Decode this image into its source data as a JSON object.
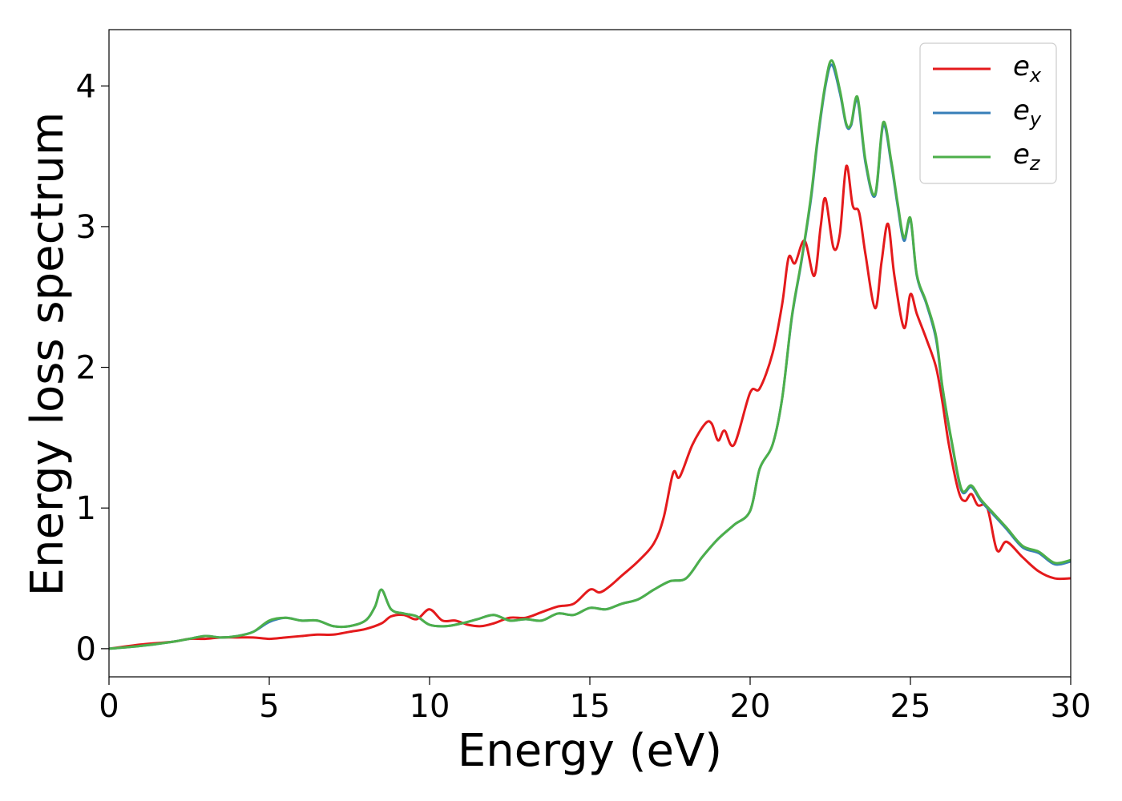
{
  "chart_data": {
    "type": "line",
    "xlabel": "Energy (eV)",
    "ylabel": "Energy loss spectrum",
    "xlim": [
      0,
      30
    ],
    "ylim": [
      -0.2,
      4.4
    ],
    "xticks": [
      0,
      5,
      10,
      15,
      20,
      25,
      30
    ],
    "xtick_labels": [
      "0",
      "5",
      "10",
      "15",
      "20",
      "25",
      "30"
    ],
    "yticks": [
      0,
      1,
      2,
      3,
      4
    ],
    "ytick_labels": [
      "0",
      "1",
      "2",
      "3",
      "4"
    ],
    "grid": false,
    "legend": "top-right",
    "series": [
      {
        "name": "e",
        "subscript": "x",
        "color": "#e41a1c",
        "x": [
          0,
          1,
          2,
          2.5,
          3,
          3.5,
          4,
          4.5,
          5,
          5.5,
          6,
          6.5,
          7,
          7.5,
          8,
          8.5,
          8.8,
          9.2,
          9.6,
          10,
          10.4,
          10.8,
          11.2,
          11.6,
          12,
          12.5,
          13,
          13.5,
          14,
          14.5,
          15,
          15.3,
          15.6,
          16,
          16.5,
          17,
          17.3,
          17.6,
          17.8,
          18.2,
          18.6,
          18.8,
          19.0,
          19.2,
          19.5,
          20,
          20.3,
          20.7,
          21,
          21.2,
          21.4,
          21.7,
          22.0,
          22.2,
          22.35,
          22.6,
          22.8,
          23.0,
          23.2,
          23.4,
          23.6,
          23.9,
          24.1,
          24.3,
          24.5,
          24.8,
          25.0,
          25.2,
          25.5,
          25.8,
          26.0,
          26.2,
          26.5,
          26.7,
          26.9,
          27.1,
          27.4,
          27.7,
          28,
          28.5,
          29,
          29.5,
          30
        ],
        "values": [
          0,
          0.03,
          0.05,
          0.07,
          0.07,
          0.08,
          0.08,
          0.08,
          0.07,
          0.08,
          0.09,
          0.1,
          0.1,
          0.12,
          0.14,
          0.18,
          0.23,
          0.24,
          0.21,
          0.28,
          0.2,
          0.2,
          0.17,
          0.16,
          0.18,
          0.22,
          0.22,
          0.26,
          0.3,
          0.32,
          0.42,
          0.4,
          0.44,
          0.52,
          0.62,
          0.75,
          0.93,
          1.25,
          1.22,
          1.45,
          1.6,
          1.6,
          1.48,
          1.55,
          1.45,
          1.82,
          1.85,
          2.1,
          2.45,
          2.78,
          2.74,
          2.9,
          2.65,
          3.0,
          3.2,
          2.85,
          2.95,
          3.43,
          3.15,
          3.1,
          2.8,
          2.42,
          2.75,
          3.02,
          2.65,
          2.28,
          2.52,
          2.38,
          2.2,
          2.0,
          1.75,
          1.45,
          1.12,
          1.05,
          1.1,
          1.02,
          1.0,
          0.7,
          0.76,
          0.65,
          0.55,
          0.5,
          0.5
        ]
      },
      {
        "name": "e",
        "subscript": "y",
        "color": "#377eb8",
        "x": [
          0,
          1,
          2,
          2.5,
          3,
          3.5,
          4,
          4.5,
          5,
          5.5,
          6,
          6.5,
          7,
          7.5,
          8,
          8.3,
          8.5,
          8.8,
          9.2,
          9.6,
          10,
          10.5,
          11,
          11.5,
          12,
          12.5,
          13,
          13.5,
          14,
          14.5,
          15,
          15.5,
          16,
          16.5,
          17,
          17.5,
          18,
          18.5,
          19,
          19.5,
          20,
          20.3,
          20.7,
          21,
          21.3,
          21.6,
          21.9,
          22.1,
          22.35,
          22.55,
          22.8,
          23.0,
          23.15,
          23.35,
          23.6,
          23.9,
          24.15,
          24.4,
          24.6,
          24.8,
          25.0,
          25.2,
          25.5,
          25.8,
          26.0,
          26.3,
          26.6,
          26.9,
          27.2,
          27.6,
          28,
          28.5,
          29,
          29.5,
          30
        ],
        "values": [
          0,
          0.02,
          0.05,
          0.07,
          0.09,
          0.08,
          0.09,
          0.12,
          0.19,
          0.22,
          0.2,
          0.2,
          0.16,
          0.16,
          0.2,
          0.3,
          0.42,
          0.28,
          0.25,
          0.23,
          0.17,
          0.16,
          0.18,
          0.21,
          0.24,
          0.2,
          0.21,
          0.2,
          0.25,
          0.24,
          0.29,
          0.28,
          0.32,
          0.35,
          0.42,
          0.48,
          0.5,
          0.65,
          0.78,
          0.88,
          0.98,
          1.28,
          1.45,
          1.78,
          2.35,
          2.75,
          3.2,
          3.6,
          4.0,
          4.15,
          3.95,
          3.72,
          3.72,
          3.9,
          3.45,
          3.22,
          3.72,
          3.45,
          3.15,
          2.9,
          3.05,
          2.65,
          2.45,
          2.2,
          1.85,
          1.45,
          1.12,
          1.15,
          1.05,
          0.95,
          0.85,
          0.72,
          0.68,
          0.6,
          0.62
        ]
      },
      {
        "name": "e",
        "subscript": "z",
        "color": "#4daf4a",
        "x": [
          0,
          1,
          2,
          2.5,
          3,
          3.5,
          4,
          4.5,
          5,
          5.5,
          6,
          6.5,
          7,
          7.5,
          8,
          8.3,
          8.5,
          8.8,
          9.2,
          9.6,
          10,
          10.5,
          11,
          11.5,
          12,
          12.5,
          13,
          13.5,
          14,
          14.5,
          15,
          15.5,
          16,
          16.5,
          17,
          17.5,
          18,
          18.5,
          19,
          19.5,
          20,
          20.3,
          20.7,
          21,
          21.3,
          21.6,
          21.9,
          22.1,
          22.35,
          22.55,
          22.8,
          23.0,
          23.15,
          23.35,
          23.6,
          23.9,
          24.15,
          24.4,
          24.6,
          24.8,
          25.0,
          25.2,
          25.5,
          25.8,
          26.0,
          26.3,
          26.6,
          26.9,
          27.2,
          27.6,
          28,
          28.5,
          29,
          29.5,
          30
        ],
        "values": [
          0,
          0.02,
          0.05,
          0.07,
          0.09,
          0.08,
          0.09,
          0.12,
          0.2,
          0.22,
          0.2,
          0.2,
          0.16,
          0.16,
          0.2,
          0.3,
          0.42,
          0.28,
          0.25,
          0.23,
          0.17,
          0.16,
          0.18,
          0.21,
          0.24,
          0.2,
          0.21,
          0.2,
          0.25,
          0.24,
          0.29,
          0.28,
          0.32,
          0.35,
          0.42,
          0.48,
          0.5,
          0.65,
          0.78,
          0.88,
          0.98,
          1.28,
          1.45,
          1.78,
          2.36,
          2.76,
          3.22,
          3.62,
          4.02,
          4.18,
          3.97,
          3.73,
          3.73,
          3.92,
          3.47,
          3.23,
          3.74,
          3.47,
          3.17,
          2.92,
          3.06,
          2.66,
          2.46,
          2.22,
          1.86,
          1.46,
          1.13,
          1.16,
          1.06,
          0.96,
          0.86,
          0.73,
          0.69,
          0.61,
          0.63
        ]
      }
    ]
  }
}
